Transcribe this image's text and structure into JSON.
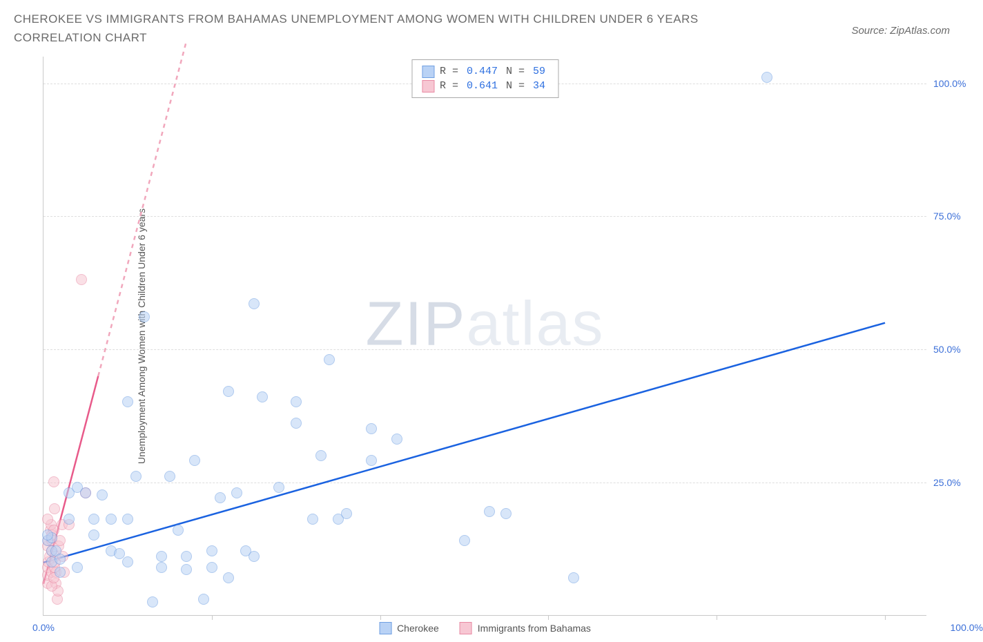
{
  "title": "CHEROKEE VS IMMIGRANTS FROM BAHAMAS UNEMPLOYMENT AMONG WOMEN WITH CHILDREN UNDER 6 YEARS CORRELATION CHART",
  "source": "Source: ZipAtlas.com",
  "watermark_a": "ZIP",
  "watermark_b": "atlas",
  "y_axis_title": "Unemployment Among Women with Children Under 6 years",
  "chart": {
    "type": "scatter",
    "xlim": [
      0,
      105
    ],
    "ylim": [
      0,
      105
    ],
    "grid_y": [
      25,
      50,
      75,
      100
    ],
    "y_tick_labels": [
      "25.0%",
      "50.0%",
      "75.0%",
      "100.0%"
    ],
    "x_ticks": [
      20,
      40,
      60,
      80,
      100
    ],
    "x_min_label": "0.0%",
    "x_max_label": "100.0%",
    "grid_color": "#dedede",
    "axis_color": "#c9c9c9",
    "background": "#ffffff",
    "tick_label_color": "#3b6fd8",
    "point_radius": 8,
    "point_opacity": 0.55,
    "series": [
      {
        "name": "Cherokee",
        "color_fill": "#b9d2f5",
        "color_stroke": "#6f9fe2",
        "R": "0.447",
        "N": "59",
        "trend": {
          "x1": 0,
          "y1": 10,
          "x2": 100,
          "y2": 55,
          "solid_until_x": 100,
          "dash_color": "#b9d2f5",
          "line_color": "#1a62e0",
          "width": 2.5
        },
        "points": [
          [
            0.5,
            14
          ],
          [
            1,
            14.5
          ],
          [
            0.5,
            15
          ],
          [
            1,
            12
          ],
          [
            1.5,
            12
          ],
          [
            1,
            10
          ],
          [
            2,
            10.5
          ],
          [
            2,
            8
          ],
          [
            3,
            18
          ],
          [
            4,
            9
          ],
          [
            3,
            23
          ],
          [
            4,
            24
          ],
          [
            5,
            23
          ],
          [
            6,
            18
          ],
          [
            6,
            15
          ],
          [
            7,
            22.5
          ],
          [
            8,
            18
          ],
          [
            8,
            12
          ],
          [
            9,
            11.5
          ],
          [
            10,
            10
          ],
          [
            10,
            18
          ],
          [
            10,
            40
          ],
          [
            11,
            26
          ],
          [
            12,
            56
          ],
          [
            13,
            2.5
          ],
          [
            14,
            9
          ],
          [
            14,
            11
          ],
          [
            15,
            26
          ],
          [
            16,
            16
          ],
          [
            17,
            11
          ],
          [
            17,
            8.5
          ],
          [
            18,
            29
          ],
          [
            19,
            3
          ],
          [
            20,
            9
          ],
          [
            20,
            12
          ],
          [
            21,
            22
          ],
          [
            22,
            7
          ],
          [
            22,
            42
          ],
          [
            23,
            23
          ],
          [
            24,
            12
          ],
          [
            25,
            11
          ],
          [
            25,
            58.5
          ],
          [
            26,
            41
          ],
          [
            28,
            24
          ],
          [
            30,
            40
          ],
          [
            30,
            36
          ],
          [
            32,
            18
          ],
          [
            33,
            30
          ],
          [
            34,
            48
          ],
          [
            35,
            18
          ],
          [
            36,
            19
          ],
          [
            39,
            29
          ],
          [
            39,
            35
          ],
          [
            42,
            33
          ],
          [
            50,
            14
          ],
          [
            53,
            19.5
          ],
          [
            55,
            19
          ],
          [
            63,
            7
          ],
          [
            86,
            101
          ]
        ]
      },
      {
        "name": "Immigrants from Bahamas",
        "color_fill": "#f7c7d3",
        "color_stroke": "#e889a3",
        "R": "0.641",
        "N": "34",
        "trend": {
          "x1": 0,
          "y1": 6,
          "x2": 6.5,
          "y2": 45,
          "dash_to_x": 17,
          "dash_to_y": 108,
          "line_color": "#e85a8a",
          "dash_color": "#f1a7bc",
          "width": 2.5
        },
        "points": [
          [
            0.5,
            6
          ],
          [
            0.5,
            7.5
          ],
          [
            0.5,
            9
          ],
          [
            0.6,
            10
          ],
          [
            0.7,
            11
          ],
          [
            0.5,
            13
          ],
          [
            0.6,
            14
          ],
          [
            0.8,
            16
          ],
          [
            0.9,
            17
          ],
          [
            0.5,
            18
          ],
          [
            1,
            8
          ],
          [
            1,
            12
          ],
          [
            1,
            14
          ],
          [
            1,
            15
          ],
          [
            1.2,
            16
          ],
          [
            1.3,
            20
          ],
          [
            1.2,
            25
          ],
          [
            1.4,
            11
          ],
          [
            1.5,
            8
          ],
          [
            1.5,
            6
          ],
          [
            1.6,
            3
          ],
          [
            1.7,
            4.5
          ],
          [
            1,
            5.5
          ],
          [
            1.2,
            7
          ],
          [
            1.3,
            9
          ],
          [
            1.4,
            10
          ],
          [
            1.8,
            13
          ],
          [
            2,
            14
          ],
          [
            2.2,
            17
          ],
          [
            2.3,
            11
          ],
          [
            2.5,
            8
          ],
          [
            3,
            17
          ],
          [
            5,
            23
          ],
          [
            4.5,
            63
          ]
        ]
      }
    ]
  },
  "legend_stats": {
    "r_label": "R =",
    "n_label": "N ="
  }
}
